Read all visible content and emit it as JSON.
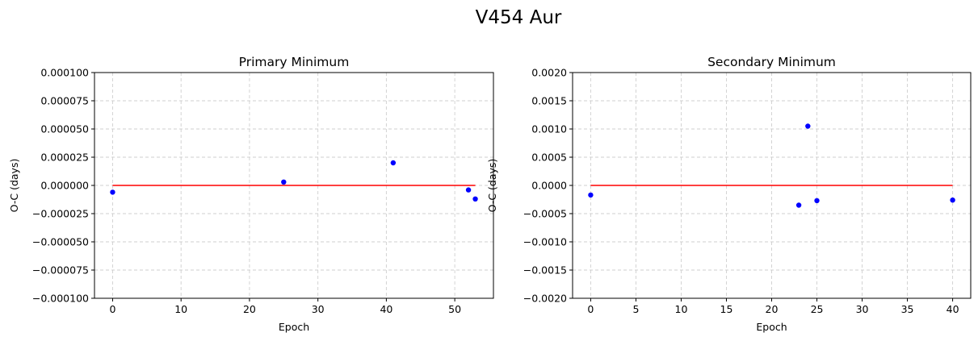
{
  "figure": {
    "suptitle": "V454 Aur"
  },
  "chart_data": [
    {
      "type": "scatter",
      "title": "Primary Minimum",
      "xlabel": "Epoch",
      "ylabel": "O-C (days)",
      "xlim": [
        -2.65,
        55.65
      ],
      "ylim": [
        -0.0001,
        0.0001
      ],
      "xticks": [
        0,
        10,
        20,
        30,
        40,
        50
      ],
      "xtick_labels": [
        "0",
        "10",
        "20",
        "30",
        "40",
        "50"
      ],
      "yticks": [
        -0.0001,
        -7.5e-05,
        -5e-05,
        -2.5e-05,
        0,
        2.5e-05,
        5e-05,
        7.5e-05,
        0.0001
      ],
      "ytick_labels": [
        "−0.000100",
        "−0.000075",
        "−0.000050",
        "−0.000025",
        "0.000000",
        "0.000025",
        "0.000050",
        "0.000075",
        "0.000100"
      ],
      "grid": true,
      "series": [
        {
          "kind": "points",
          "color": "#0000ff",
          "x": [
            0,
            25,
            41,
            52,
            53
          ],
          "y": [
            -6e-06,
            3e-06,
            2e-05,
            -4e-06,
            -1.2e-05
          ]
        },
        {
          "kind": "line",
          "color": "#ff0000",
          "x": [
            0,
            53
          ],
          "y": [
            0,
            0
          ]
        }
      ]
    },
    {
      "type": "scatter",
      "title": "Secondary Minimum",
      "xlabel": "Epoch",
      "ylabel": "O-C (days)",
      "xlim": [
        -2.0,
        42.0
      ],
      "ylim": [
        -0.002,
        0.002
      ],
      "xticks": [
        0,
        5,
        10,
        15,
        20,
        25,
        30,
        35,
        40
      ],
      "xtick_labels": [
        "0",
        "5",
        "10",
        "15",
        "20",
        "25",
        "30",
        "35",
        "40"
      ],
      "yticks": [
        -0.002,
        -0.0015,
        -0.001,
        -0.0005,
        0,
        0.0005,
        0.001,
        0.0015,
        0.002
      ],
      "ytick_labels": [
        "−0.0020",
        "−0.0015",
        "−0.0010",
        "−0.0005",
        "0.0000",
        "0.0005",
        "0.0010",
        "0.0015",
        "0.0020"
      ],
      "grid": true,
      "series": [
        {
          "kind": "points",
          "color": "#0000ff",
          "x": [
            0,
            23,
            24,
            25,
            40
          ],
          "y": [
            -0.00017,
            -0.00035,
            0.00105,
            -0.00027,
            -0.00026
          ]
        },
        {
          "kind": "line",
          "color": "#ff0000",
          "x": [
            0,
            40
          ],
          "y": [
            0,
            0
          ]
        }
      ]
    }
  ]
}
